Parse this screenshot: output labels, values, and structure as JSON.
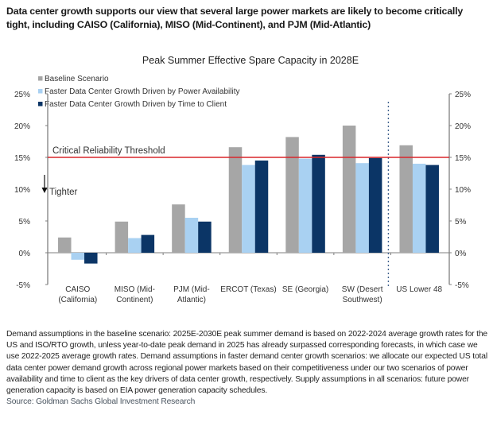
{
  "headline": "Data center growth supports our view that several large power markets are likely to become critically tight, including CAISO (California), MISO (Mid-Continent), and PJM (Mid-Atlantic)",
  "notes": "Demand assumptions in the baseline scenario: 2025E-2030E peak summer demand is based on 2022-2024 average growth rates for the US and ISO/RTO growth, unless year-to-date peak demand in 2025 has already surpassed corresponding forecasts, in which case we use 2022-2025 average growth rates. Demand assumptions in faster demand center growth scenarios: we allocate our expected US total data center power demand growth across regional power markets based on their competitiveness under our two scenarios of power availability and time to client as the key drivers of data center growth, respectively. Supply assumptions in all scenarios: future power generation capacity is based on EIA power generation capacity schedules.",
  "source": "Source: Goldman Sachs Global Investment Research",
  "chart_data": {
    "type": "bar",
    "title": "Peak Summer Effective Spare Capacity in 2028E",
    "xlabel": "",
    "ylabel": "",
    "ylim": [
      -5,
      25
    ],
    "yticks": [
      -5,
      0,
      5,
      10,
      15,
      20,
      25
    ],
    "ytick_labels": [
      "-5%",
      "0%",
      "5%",
      "10%",
      "15%",
      "20%",
      "25%"
    ],
    "secondary_y_axis": true,
    "grid": false,
    "legend_position": "top-left",
    "categories": [
      [
        "CAISO",
        "(California)"
      ],
      [
        "MISO (Mid-",
        "Continent)"
      ],
      [
        "PJM (Mid-",
        "Atlantic)"
      ],
      [
        "ERCOT (Texas)"
      ],
      [
        "SE (Georgia)"
      ],
      [
        "SW (Desert",
        "Southwest)"
      ],
      [
        "US Lower 48"
      ]
    ],
    "series": [
      {
        "name": "Baseline Scenario",
        "color": "#a6a6a6",
        "values": [
          2.4,
          4.9,
          7.6,
          16.6,
          18.2,
          20.0,
          16.9
        ]
      },
      {
        "name": "Faster Data Center Growth Driven by Power Availability",
        "color": "#a9d1f2",
        "values": [
          -1.1,
          2.3,
          5.5,
          13.8,
          14.8,
          14.1,
          14.0
        ]
      },
      {
        "name": "Faster Data Center Growth Driven by Time to Client",
        "color": "#0b3566",
        "values": [
          -1.7,
          2.8,
          4.9,
          14.5,
          15.4,
          14.9,
          13.8
        ]
      }
    ],
    "reference_line": {
      "label": "Critical Reliability Threshold",
      "value": 15,
      "color": "#d9262b"
    },
    "annotation": {
      "label": "Tighter",
      "arrow": "down"
    },
    "separator_after_category_index": 5
  }
}
